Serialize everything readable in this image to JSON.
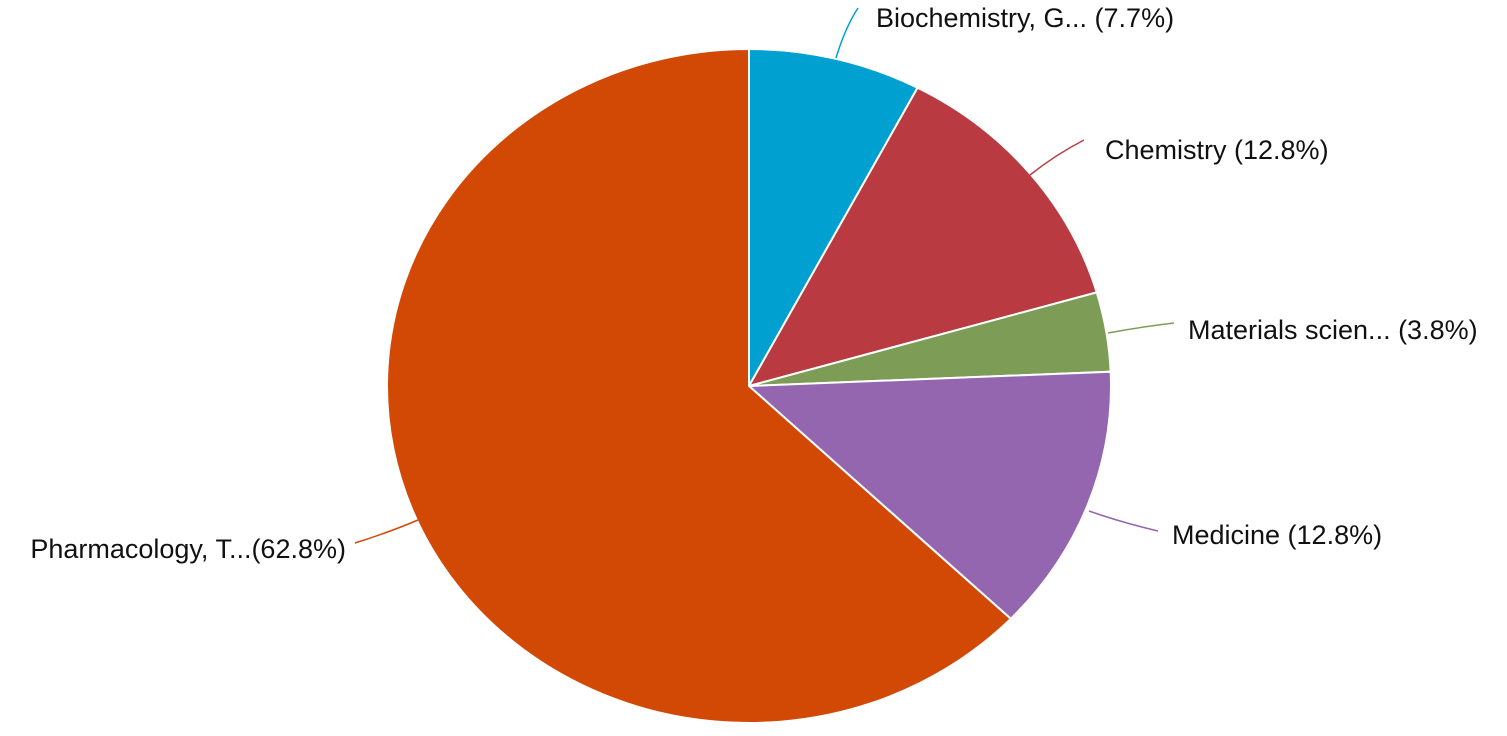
{
  "chart_data": {
    "type": "pie",
    "start_angle_deg": 0,
    "direction": "clockwise",
    "slices": [
      {
        "label": "Biochemistry, G... (7.7%)",
        "value": 7.7,
        "color": "#00a0d0"
      },
      {
        "label": "Chemistry (12.8%)",
        "value": 12.8,
        "color": "#b93a40"
      },
      {
        "label": "Materials scien... (3.8%)",
        "value": 3.8,
        "color": "#7d9d57"
      },
      {
        "label": "Medicine (12.8%)",
        "value": 12.8,
        "color": "#9466b0"
      },
      {
        "label": "Pharmacology, T...(62.8%)",
        "value": 62.8,
        "color": "#d14905"
      }
    ]
  }
}
